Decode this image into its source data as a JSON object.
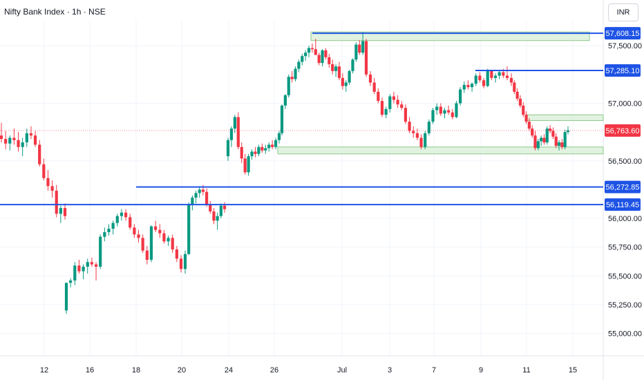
{
  "header": {
    "title": "Nifty Bank Index · 1h · NSE",
    "currency": "INR"
  },
  "colors": {
    "up": "#089981",
    "down": "#f23645",
    "level_line": "#1e53e5",
    "zone_fill": "#d9f0d8",
    "zone_stroke": "#8cc88c",
    "grid": "#f0f3fa",
    "axis_text": "#131722",
    "price_line": "#f23645"
  },
  "chart_data": {
    "type": "candlestick",
    "title": "Nifty Bank Index · 1h · NSE",
    "y_ticks": [
      55000,
      55250,
      55500,
      55750,
      56000,
      56500,
      57000,
      57500
    ],
    "y_tick_labels": [
      "55,000.00",
      "55,250.00",
      "55,500.00",
      "55,750.00",
      "56,000.00",
      "56,500.00",
      "57,000.00",
      "57,500.00"
    ],
    "x_tick_labels": [
      "12",
      "16",
      "18",
      "20",
      "24",
      "26",
      "Jul",
      "3",
      "7",
      "9",
      "11",
      "15"
    ],
    "levels": [
      {
        "value": 57608.15,
        "label": "57,608.15"
      },
      {
        "value": 57285.1,
        "label": "57,285.10"
      },
      {
        "value": 56272.85,
        "label": "56,272.85"
      },
      {
        "value": 56119.45,
        "label": "56,119.45"
      }
    ],
    "current_price": {
      "value": 56763.6,
      "label": "56,763.60"
    },
    "zones": [
      {
        "from": 57545,
        "to": 57620
      },
      {
        "from": 56560,
        "to": 56620
      },
      {
        "from": 56850,
        "to": 56900
      }
    ],
    "candles": [
      [
        56720,
        56830,
        56660,
        56690
      ],
      [
        56690,
        56760,
        56600,
        56650
      ],
      [
        56650,
        56720,
        56590,
        56700
      ],
      [
        56700,
        56780,
        56640,
        56680
      ],
      [
        56680,
        56750,
        56580,
        56620
      ],
      [
        56620,
        56700,
        56540,
        56660
      ],
      [
        56660,
        56780,
        56620,
        56740
      ],
      [
        56740,
        56800,
        56690,
        56720
      ],
      [
        56720,
        56760,
        56620,
        56640
      ],
      [
        56640,
        56680,
        56450,
        56470
      ],
      [
        56470,
        56520,
        56330,
        56350
      ],
      [
        56350,
        56420,
        56240,
        56280
      ],
      [
        56280,
        56330,
        56180,
        56240
      ],
      [
        56240,
        56290,
        56010,
        56040
      ],
      [
        56040,
        56110,
        55960,
        56090
      ],
      [
        56090,
        56130,
        55990,
        56020
      ],
      [
        55200,
        55440,
        55170,
        55440
      ],
      [
        55440,
        55480,
        55400,
        55460
      ],
      [
        55460,
        55620,
        55420,
        55590
      ],
      [
        55590,
        55640,
        55520,
        55540
      ],
      [
        55540,
        55600,
        55470,
        55580
      ],
      [
        55580,
        55650,
        55520,
        55620
      ],
      [
        55620,
        55660,
        55580,
        55600
      ],
      [
        55600,
        55620,
        55460,
        55580
      ],
      [
        55580,
        55860,
        55560,
        55840
      ],
      [
        55840,
        55920,
        55800,
        55880
      ],
      [
        55880,
        55950,
        55850,
        55910
      ],
      [
        55910,
        55980,
        55860,
        55960
      ],
      [
        55960,
        56040,
        55930,
        56020
      ],
      [
        56020,
        56080,
        55980,
        56050
      ],
      [
        56050,
        56080,
        55980,
        56010
      ],
      [
        56010,
        56040,
        55900,
        55920
      ],
      [
        55920,
        55950,
        55830,
        55860
      ],
      [
        55860,
        55900,
        55790,
        55830
      ],
      [
        55830,
        55860,
        55700,
        55720
      ],
      [
        55720,
        55760,
        55600,
        55640
      ],
      [
        55640,
        55940,
        55620,
        55930
      ],
      [
        55930,
        55980,
        55880,
        55900
      ],
      [
        55900,
        55950,
        55830,
        55870
      ],
      [
        55870,
        55900,
        55780,
        55800
      ],
      [
        55800,
        55850,
        55760,
        55830
      ],
      [
        55830,
        55860,
        55700,
        55730
      ],
      [
        55730,
        55760,
        55620,
        55650
      ],
      [
        55650,
        55680,
        55530,
        55560
      ],
      [
        55560,
        55720,
        55520,
        55690
      ],
      [
        55690,
        56140,
        55680,
        56120
      ],
      [
        56120,
        56200,
        56070,
        56180
      ],
      [
        56180,
        56240,
        56130,
        56220
      ],
      [
        56220,
        56280,
        56180,
        56250
      ],
      [
        56250,
        56290,
        56200,
        56230
      ],
      [
        56230,
        56260,
        56100,
        56120
      ],
      [
        56120,
        56150,
        56040,
        56060
      ],
      [
        56060,
        56090,
        55950,
        55980
      ],
      [
        55980,
        56050,
        55900,
        56020
      ],
      [
        56020,
        56130,
        56000,
        56110
      ],
      [
        56110,
        56140,
        56050,
        56080
      ],
      [
        56540,
        56700,
        56500,
        56680
      ],
      [
        56680,
        56800,
        56620,
        56780
      ],
      [
        56780,
        56900,
        56740,
        56880
      ],
      [
        56880,
        56920,
        56600,
        56620
      ],
      [
        56620,
        56660,
        56480,
        56520
      ],
      [
        56520,
        56560,
        56380,
        56400
      ],
      [
        56400,
        56560,
        56370,
        56540
      ],
      [
        56540,
        56600,
        56510,
        56580
      ],
      [
        56580,
        56620,
        56530,
        56560
      ],
      [
        56560,
        56640,
        56540,
        56620
      ],
      [
        56620,
        56650,
        56570,
        56590
      ],
      [
        56590,
        56640,
        56560,
        56610
      ],
      [
        56610,
        56660,
        56580,
        56640
      ],
      [
        56640,
        56680,
        56600,
        56620
      ],
      [
        56620,
        56700,
        56600,
        56680
      ],
      [
        56680,
        56760,
        56650,
        56740
      ],
      [
        56740,
        56990,
        56720,
        56980
      ],
      [
        56980,
        57080,
        56950,
        57070
      ],
      [
        57070,
        57250,
        57050,
        57230
      ],
      [
        57230,
        57280,
        57180,
        57210
      ],
      [
        57210,
        57320,
        57190,
        57300
      ],
      [
        57300,
        57380,
        57270,
        57360
      ],
      [
        57360,
        57430,
        57330,
        57410
      ],
      [
        57410,
        57460,
        57370,
        57440
      ],
      [
        57440,
        57500,
        57400,
        57480
      ],
      [
        57480,
        57520,
        57440,
        57470
      ],
      [
        57470,
        57560,
        57420,
        57420
      ],
      [
        57420,
        57440,
        57330,
        57350
      ],
      [
        57350,
        57470,
        57320,
        57460
      ],
      [
        57460,
        57480,
        57380,
        57400
      ],
      [
        57400,
        57430,
        57310,
        57340
      ],
      [
        57340,
        57380,
        57250,
        57280
      ],
      [
        57280,
        57340,
        57230,
        57320
      ],
      [
        57320,
        57360,
        57200,
        57220
      ],
      [
        57220,
        57260,
        57120,
        57150
      ],
      [
        57150,
        57200,
        57100,
        57180
      ],
      [
        57180,
        57290,
        57160,
        57280
      ],
      [
        57280,
        57390,
        57260,
        57380
      ],
      [
        57380,
        57530,
        57360,
        57510
      ],
      [
        57510,
        57550,
        57420,
        57440
      ],
      [
        57440,
        57620,
        57420,
        57540
      ],
      [
        57540,
        57560,
        57230,
        57250
      ],
      [
        57250,
        57280,
        57150,
        57180
      ],
      [
        57180,
        57220,
        57080,
        57100
      ],
      [
        57100,
        57130,
        57000,
        57020
      ],
      [
        57020,
        57050,
        56880,
        56900
      ],
      [
        56900,
        56970,
        56870,
        56950
      ],
      [
        56950,
        57080,
        56920,
        57060
      ],
      [
        57060,
        57100,
        57000,
        57030
      ],
      [
        57030,
        57070,
        56960,
        56990
      ],
      [
        56990,
        57020,
        56940,
        56960
      ],
      [
        56960,
        56990,
        56820,
        56840
      ],
      [
        56840,
        56880,
        56740,
        56760
      ],
      [
        56760,
        56800,
        56700,
        56740
      ],
      [
        56740,
        56780,
        56680,
        56700
      ],
      [
        56700,
        56730,
        56600,
        56620
      ],
      [
        56620,
        56760,
        56600,
        56740
      ],
      [
        56740,
        56860,
        56720,
        56840
      ],
      [
        56840,
        56960,
        56820,
        56940
      ],
      [
        56940,
        57000,
        56900,
        56970
      ],
      [
        56970,
        57000,
        56890,
        56910
      ],
      [
        56910,
        56960,
        56870,
        56940
      ],
      [
        56940,
        56980,
        56900,
        56920
      ],
      [
        56920,
        56950,
        56860,
        56880
      ],
      [
        56880,
        57020,
        56870,
        57000
      ],
      [
        57000,
        57140,
        56980,
        57120
      ],
      [
        57120,
        57190,
        57090,
        57160
      ],
      [
        57160,
        57200,
        57120,
        57140
      ],
      [
        57140,
        57180,
        57100,
        57170
      ],
      [
        57170,
        57260,
        57150,
        57240
      ],
      [
        57240,
        57270,
        57180,
        57200
      ],
      [
        57200,
        57220,
        57130,
        57150
      ],
      [
        57150,
        57300,
        57140,
        57280
      ],
      [
        57280,
        57290,
        57200,
        57220
      ],
      [
        57220,
        57260,
        57180,
        57240
      ],
      [
        57240,
        57290,
        57210,
        57270
      ],
      [
        57270,
        57300,
        57220,
        57240
      ],
      [
        57240,
        57320,
        57200,
        57220
      ],
      [
        57220,
        57260,
        57150,
        57180
      ],
      [
        57180,
        57200,
        57080,
        57100
      ],
      [
        57100,
        57130,
        57020,
        57040
      ],
      [
        57040,
        57070,
        56960,
        56980
      ],
      [
        56980,
        57010,
        56880,
        56900
      ],
      [
        56900,
        56930,
        56820,
        56840
      ],
      [
        56840,
        56870,
        56760,
        56780
      ],
      [
        56780,
        56810,
        56700,
        56720
      ],
      [
        56720,
        56760,
        56590,
        56610
      ],
      [
        56610,
        56690,
        56590,
        56670
      ],
      [
        56670,
        56720,
        56630,
        56700
      ],
      [
        56700,
        56730,
        56640,
        56660
      ],
      [
        56660,
        56800,
        56640,
        56780
      ],
      [
        56780,
        56810,
        56740,
        56760
      ],
      [
        56760,
        56790,
        56690,
        56710
      ],
      [
        56710,
        56740,
        56610,
        56630
      ],
      [
        56630,
        56680,
        56590,
        56660
      ],
      [
        56660,
        56690,
        56600,
        56620
      ],
      [
        56620,
        56770,
        56600,
        56750
      ],
      [
        56750,
        56800,
        56730,
        56764
      ]
    ]
  }
}
